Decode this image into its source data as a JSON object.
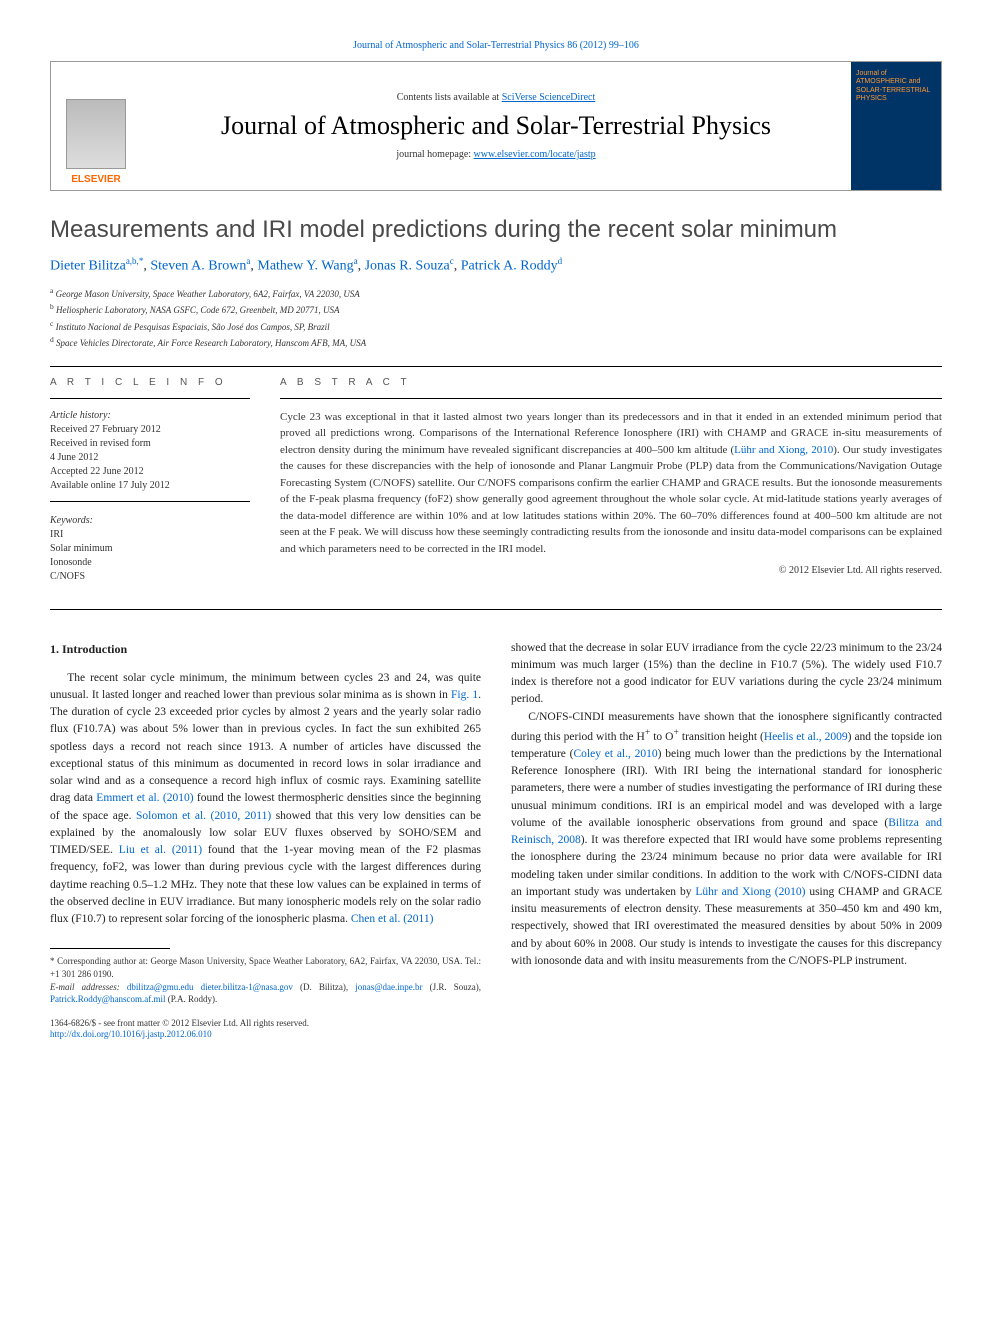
{
  "top_link": "Journal of Atmospheric and Solar-Terrestrial Physics 86 (2012) 99–106",
  "header": {
    "contents_text": "Contents lists available at ",
    "contents_link": "SciVerse ScienceDirect",
    "journal_title": "Journal of Atmospheric and Solar-Terrestrial Physics",
    "homepage_prefix": "journal homepage: ",
    "homepage_link": "www.elsevier.com/locate/jastp",
    "publisher": "ELSEVIER",
    "cover_line1": "Journal of",
    "cover_line2": "ATMOSPHERIC and",
    "cover_line3": "SOLAR-TERRESTRIAL",
    "cover_line4": "PHYSICS"
  },
  "article": {
    "title": "Measurements and IRI model predictions during the recent solar minimum",
    "authors": [
      {
        "name": "Dieter Bilitza",
        "sup": "a,b,",
        "star": "*"
      },
      {
        "name": "Steven A. Brown",
        "sup": "a"
      },
      {
        "name": "Mathew Y. Wang",
        "sup": "a"
      },
      {
        "name": "Jonas R. Souza",
        "sup": "c"
      },
      {
        "name": "Patrick A. Roddy",
        "sup": "d"
      }
    ],
    "affiliations": [
      {
        "sup": "a",
        "text": "George Mason University, Space Weather Laboratory, 6A2, Fairfax, VA 22030, USA"
      },
      {
        "sup": "b",
        "text": "Heliospheric Laboratory, NASA GSFC, Code 672, Greenbelt, MD 20771, USA"
      },
      {
        "sup": "c",
        "text": "Instituto Nacional de Pesquisas Espaciais, São José dos Campos, SP, Brazil"
      },
      {
        "sup": "d",
        "text": "Space Vehicles Directorate, Air Force Research Laboratory, Hanscom AFB, MA, USA"
      }
    ]
  },
  "info": {
    "heading": "A R T I C L E   I N F O",
    "history_label": "Article history:",
    "received": "Received 27 February 2012",
    "revised": "Received in revised form",
    "revised_date": "4 June 2012",
    "accepted": "Accepted 22 June 2012",
    "online": "Available online 17 July 2012",
    "keywords_label": "Keywords:",
    "keywords": [
      "IRI",
      "Solar minimum",
      "Ionosonde",
      "C/NOFS"
    ]
  },
  "abstract": {
    "heading": "A B S T R A C T",
    "text_parts": [
      "Cycle 23 was exceptional in that it lasted almost two years longer than its predecessors and in that it ended in an extended minimum period that proved all predictions wrong. Comparisons of the International Reference Ionosphere (IRI) with CHAMP and GRACE in-situ measurements of electron density during the minimum have revealed significant discrepancies at 400–500 km altitude (",
      "Lühr and Xiong, 2010",
      "). Our study investigates the causes for these discrepancies with the help of ionosonde and Planar Langmuir Probe (PLP) data from the Communications/Navigation Outage Forecasting System (C/NOFS) satellite. Our C/NOFS comparisons confirm the earlier CHAMP and GRACE results. But the ionosonde measurements of the F-peak plasma frequency (foF2) show generally good agreement throughout the whole solar cycle. At mid-latitude stations yearly averages of the data-model difference are within 10% and at low latitudes stations within 20%. The 60–70% differences found at 400–500 km altitude are not seen at the F peak. We will discuss how these seemingly contradicting results from the ionosonde and insitu data-model comparisons can be explained and which parameters need to be corrected in the IRI model."
    ],
    "copyright": "© 2012 Elsevier Ltd. All rights reserved."
  },
  "body": {
    "intro_heading": "1. Introduction",
    "col1_p1_parts": [
      "The recent solar cycle minimum, the minimum between cycles 23 and 24, was quite unusual. It lasted longer and reached lower than previous solar minima as is shown in ",
      "Fig. 1",
      ". The duration of cycle 23 exceeded prior cycles by almost 2 years and the yearly solar radio flux (F10.7A) was about 5% lower than in previous cycles. In fact the sun exhibited 265 spotless days a record not reach since 1913. A number of articles have discussed the exceptional status of this minimum as documented in record lows in solar irradiance and solar wind and as a consequence a record high influx of cosmic rays. Examining satellite drag data ",
      "Emmert et al. (2010)",
      " found the lowest thermospheric densities since the beginning of the space age. ",
      "Solomon et al. (2010, 2011)",
      " showed that this very low densities can be explained by the anomalously low solar EUV fluxes observed by SOHO/SEM and TIMED/SEE. ",
      "Liu et al. (2011)",
      " found that the 1-year moving mean of the F2 plasmas frequency, foF2, was lower than during previous cycle with the largest differences during daytime reaching 0.5–1.2 MHz. They note that these low values can be explained in terms of the observed decline in EUV irradiance. But many ionospheric models rely on the solar radio flux (F10.7) to represent solar forcing of the ionospheric plasma. ",
      "Chen et al. (2011)"
    ],
    "col2_p1_text": "showed that the decrease in solar EUV irradiance from the cycle 22/23 minimum to the 23/24 minimum was much larger (15%) than the decline in F10.7 (5%). The widely used F10.7 index is therefore not a good indicator for EUV variations during the cycle 23/24 minimum period.",
    "col2_p2_parts": [
      "C/NOFS-CINDI measurements have shown that the ionosphere significantly contracted during this period with the H",
      "+",
      " to O",
      "+",
      " transition height (",
      "Heelis et al., 2009",
      ") and the topside ion temperature (",
      "Coley et al., 2010",
      ") being much lower than the predictions by the International Reference Ionosphere (IRI). With IRI being the international standard for ionospheric parameters, there were a number of studies investigating the performance of IRI during these unusual minimum conditions. IRI is an empirical model and was developed with a large volume of the available ionospheric observations from ground and space (",
      "Bilitza and Reinisch, 2008",
      "). It was therefore expected that IRI would have some problems representing the ionosphere during the 23/24 minimum because no prior data were available for IRI modeling taken under similar conditions. In addition to the work with C/NOFS-CIDNI data an important study was undertaken by ",
      "Lühr and Xiong (2010)",
      " using CHAMP and GRACE insitu measurements of electron density. These measurements at 350–450 km and 490 km, respectively, showed that IRI overestimated the measured densities by about 50% in 2009 and by about 60% in 2008. Our study is intends to investigate the causes for this discrepancy with ionosonde data and with insitu measurements from the C/NOFS-PLP instrument."
    ]
  },
  "footnote": {
    "star_text": "* Corresponding author at: George Mason University, Space Weather Laboratory, 6A2, Fairfax, VA 22030, USA. Tel.: +1 301 286 0190.",
    "email_label": "E-mail addresses:",
    "emails": [
      {
        "addr": "dbilitza@gmu.edu",
        "person": ""
      },
      {
        "addr": "dieter.bilitza-1@nasa.gov",
        "person": " (D. Bilitza),"
      },
      {
        "addr": "jonas@dae.inpe.br",
        "person": " (J.R. Souza),"
      },
      {
        "addr": "Patrick.Roddy@hanscom.af.mil",
        "person": " (P.A. Roddy)."
      }
    ]
  },
  "bottom": {
    "issn_line": "1364-6826/$ - see front matter © 2012 Elsevier Ltd. All rights reserved.",
    "doi_link": "http://dx.doi.org/10.1016/j.jastp.2012.06.010"
  },
  "colors": {
    "link": "#0066cc",
    "elsevier_orange": "#ff6600",
    "cover_bg": "#003366",
    "cover_text": "#ff9933",
    "heading_gray": "#4a4a4a"
  }
}
